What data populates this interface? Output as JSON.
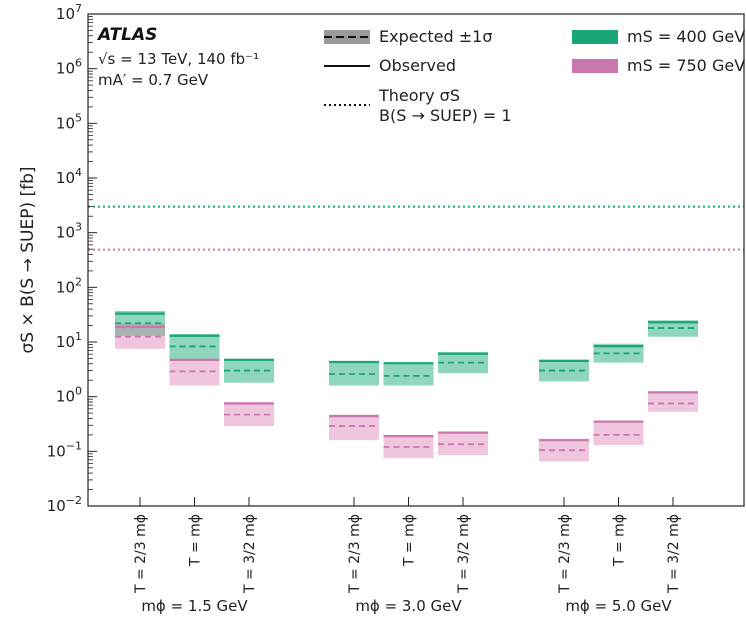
{
  "chart_data": {
    "type": "bar",
    "title": "",
    "ylabel": "σS × B(S → SUEP) [fb]",
    "yscale": "log",
    "ylim": [
      0.01,
      10000000
    ],
    "yticks": [
      {
        "value": 0.01,
        "base": "10",
        "exp": "−2"
      },
      {
        "value": 0.1,
        "base": "10",
        "exp": "−1"
      },
      {
        "value": 1,
        "base": "10",
        "exp": "0"
      },
      {
        "value": 10,
        "base": "10",
        "exp": "1"
      },
      {
        "value": 100,
        "base": "10",
        "exp": "2"
      },
      {
        "value": 1000,
        "base": "10",
        "exp": "3"
      },
      {
        "value": 10000,
        "base": "10",
        "exp": "4"
      },
      {
        "value": 100000,
        "base": "10",
        "exp": "5"
      },
      {
        "value": 1000000,
        "base": "10",
        "exp": "6"
      },
      {
        "value": 10000000,
        "base": "10",
        "exp": "7"
      }
    ],
    "experiment_label": "ATLAS",
    "energy_label": "√s = 13 TeV, 140 fb⁻¹",
    "mass_label": "mA′ = 0.7 GeV",
    "legend": {
      "expected": "Expected ±1σ",
      "observed": "Observed",
      "theory_line1": "Theory σS",
      "theory_line2": "B(S → SUEP) = 1",
      "series_400": "mS = 400 GeV",
      "series_750": "mS = 750 GeV"
    },
    "colors": {
      "ms400_band": "#8fd6bd",
      "ms400_line": "#1aa57a",
      "ms750_band": "#ecbcd8",
      "ms750_line": "#c978ad",
      "overlap_band": "#a9b3ae",
      "legend_gray": "#9a9a9a"
    },
    "groups": [
      "mϕ = 1.5 GeV",
      "mϕ = 3.0 GeV",
      "mϕ = 5.0 GeV"
    ],
    "categories": [
      "T = 2/3 mϕ",
      "T = mϕ",
      "T = 3/2 mϕ"
    ],
    "series": [
      {
        "name": "mS = 400 GeV",
        "theory": 3000,
        "points": [
          {
            "group": 0,
            "cat": 0,
            "exp": 22,
            "lo": 13,
            "hi": 37,
            "obs": 33
          },
          {
            "group": 0,
            "cat": 1,
            "exp": 8.3,
            "lo": 4.8,
            "hi": 14,
            "obs": 13
          },
          {
            "group": 0,
            "cat": 2,
            "exp": 3.0,
            "lo": 1.8,
            "hi": 5.0,
            "obs": 4.7
          },
          {
            "group": 1,
            "cat": 0,
            "exp": 2.6,
            "lo": 1.6,
            "hi": 4.5,
            "obs": 4.3
          },
          {
            "group": 1,
            "cat": 1,
            "exp": 2.4,
            "lo": 1.6,
            "hi": 4.2,
            "obs": 4.1
          },
          {
            "group": 1,
            "cat": 2,
            "exp": 4.2,
            "lo": 2.7,
            "hi": 6.6,
            "obs": 6.1
          },
          {
            "group": 2,
            "cat": 0,
            "exp": 3.0,
            "lo": 1.9,
            "hi": 4.8,
            "obs": 4.5
          },
          {
            "group": 2,
            "cat": 1,
            "exp": 6.2,
            "lo": 4.2,
            "hi": 9.3,
            "obs": 8.4
          },
          {
            "group": 2,
            "cat": 2,
            "exp": 18,
            "lo": 12.5,
            "hi": 25,
            "obs": 23
          }
        ]
      },
      {
        "name": "mS = 750 GeV",
        "theory": 490,
        "points": [
          {
            "group": 0,
            "cat": 0,
            "exp": 12.5,
            "lo": 7.5,
            "hi": 22,
            "obs": 19
          },
          {
            "group": 0,
            "cat": 1,
            "exp": 2.9,
            "lo": 1.6,
            "hi": 5.0,
            "obs": 4.7
          },
          {
            "group": 0,
            "cat": 2,
            "exp": 0.47,
            "lo": 0.29,
            "hi": 0.8,
            "obs": 0.75
          },
          {
            "group": 1,
            "cat": 0,
            "exp": 0.29,
            "lo": 0.16,
            "hi": 0.47,
            "obs": 0.44
          },
          {
            "group": 1,
            "cat": 1,
            "exp": 0.12,
            "lo": 0.075,
            "hi": 0.2,
            "obs": 0.19
          },
          {
            "group": 1,
            "cat": 2,
            "exp": 0.135,
            "lo": 0.085,
            "hi": 0.23,
            "obs": 0.22
          },
          {
            "group": 2,
            "cat": 0,
            "exp": 0.105,
            "lo": 0.065,
            "hi": 0.17,
            "obs": 0.16
          },
          {
            "group": 2,
            "cat": 1,
            "exp": 0.2,
            "lo": 0.13,
            "hi": 0.36,
            "obs": 0.35
          },
          {
            "group": 2,
            "cat": 2,
            "exp": 0.75,
            "lo": 0.53,
            "hi": 1.25,
            "obs": 1.2
          }
        ]
      }
    ]
  }
}
